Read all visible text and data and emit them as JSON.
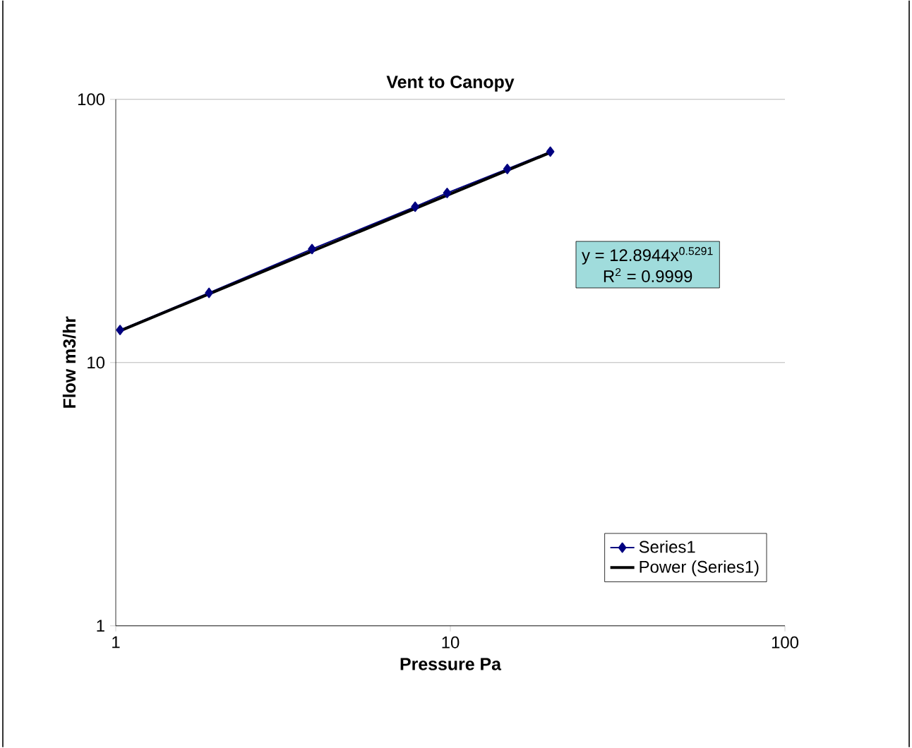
{
  "chart_data": {
    "type": "line",
    "title": "Vent to Canopy",
    "xlabel": "Pressure Pa",
    "ylabel": "Flow m3/hr",
    "log": "xy",
    "xlim": [
      1,
      100
    ],
    "ylim": [
      1,
      100
    ],
    "xticks": [
      1,
      10,
      100
    ],
    "yticks": [
      1,
      10,
      100
    ],
    "grid": "y",
    "legend": "bottom right",
    "annotations": [
      "y = 12.8944x$^{0.5291}$",
      "R$^{2}$ = 0.9999"
    ],
    "series": [
      {
        "name": "Series1",
        "color": "#000080",
        "marker": "diamond",
        "x": [
          1.03,
          1.9,
          3.86,
          7.85,
          9.78,
          14.8,
          19.9
        ],
        "values": [
          13.3,
          18.4,
          27.0,
          39.1,
          44.1,
          54.4,
          63.3
        ]
      },
      {
        "name": "Power (Series1)",
        "color": "#000000",
        "marker": "none",
        "x": [
          1.03,
          19.9
        ],
        "values": [
          13.2,
          62.8
        ]
      }
    ]
  }
}
